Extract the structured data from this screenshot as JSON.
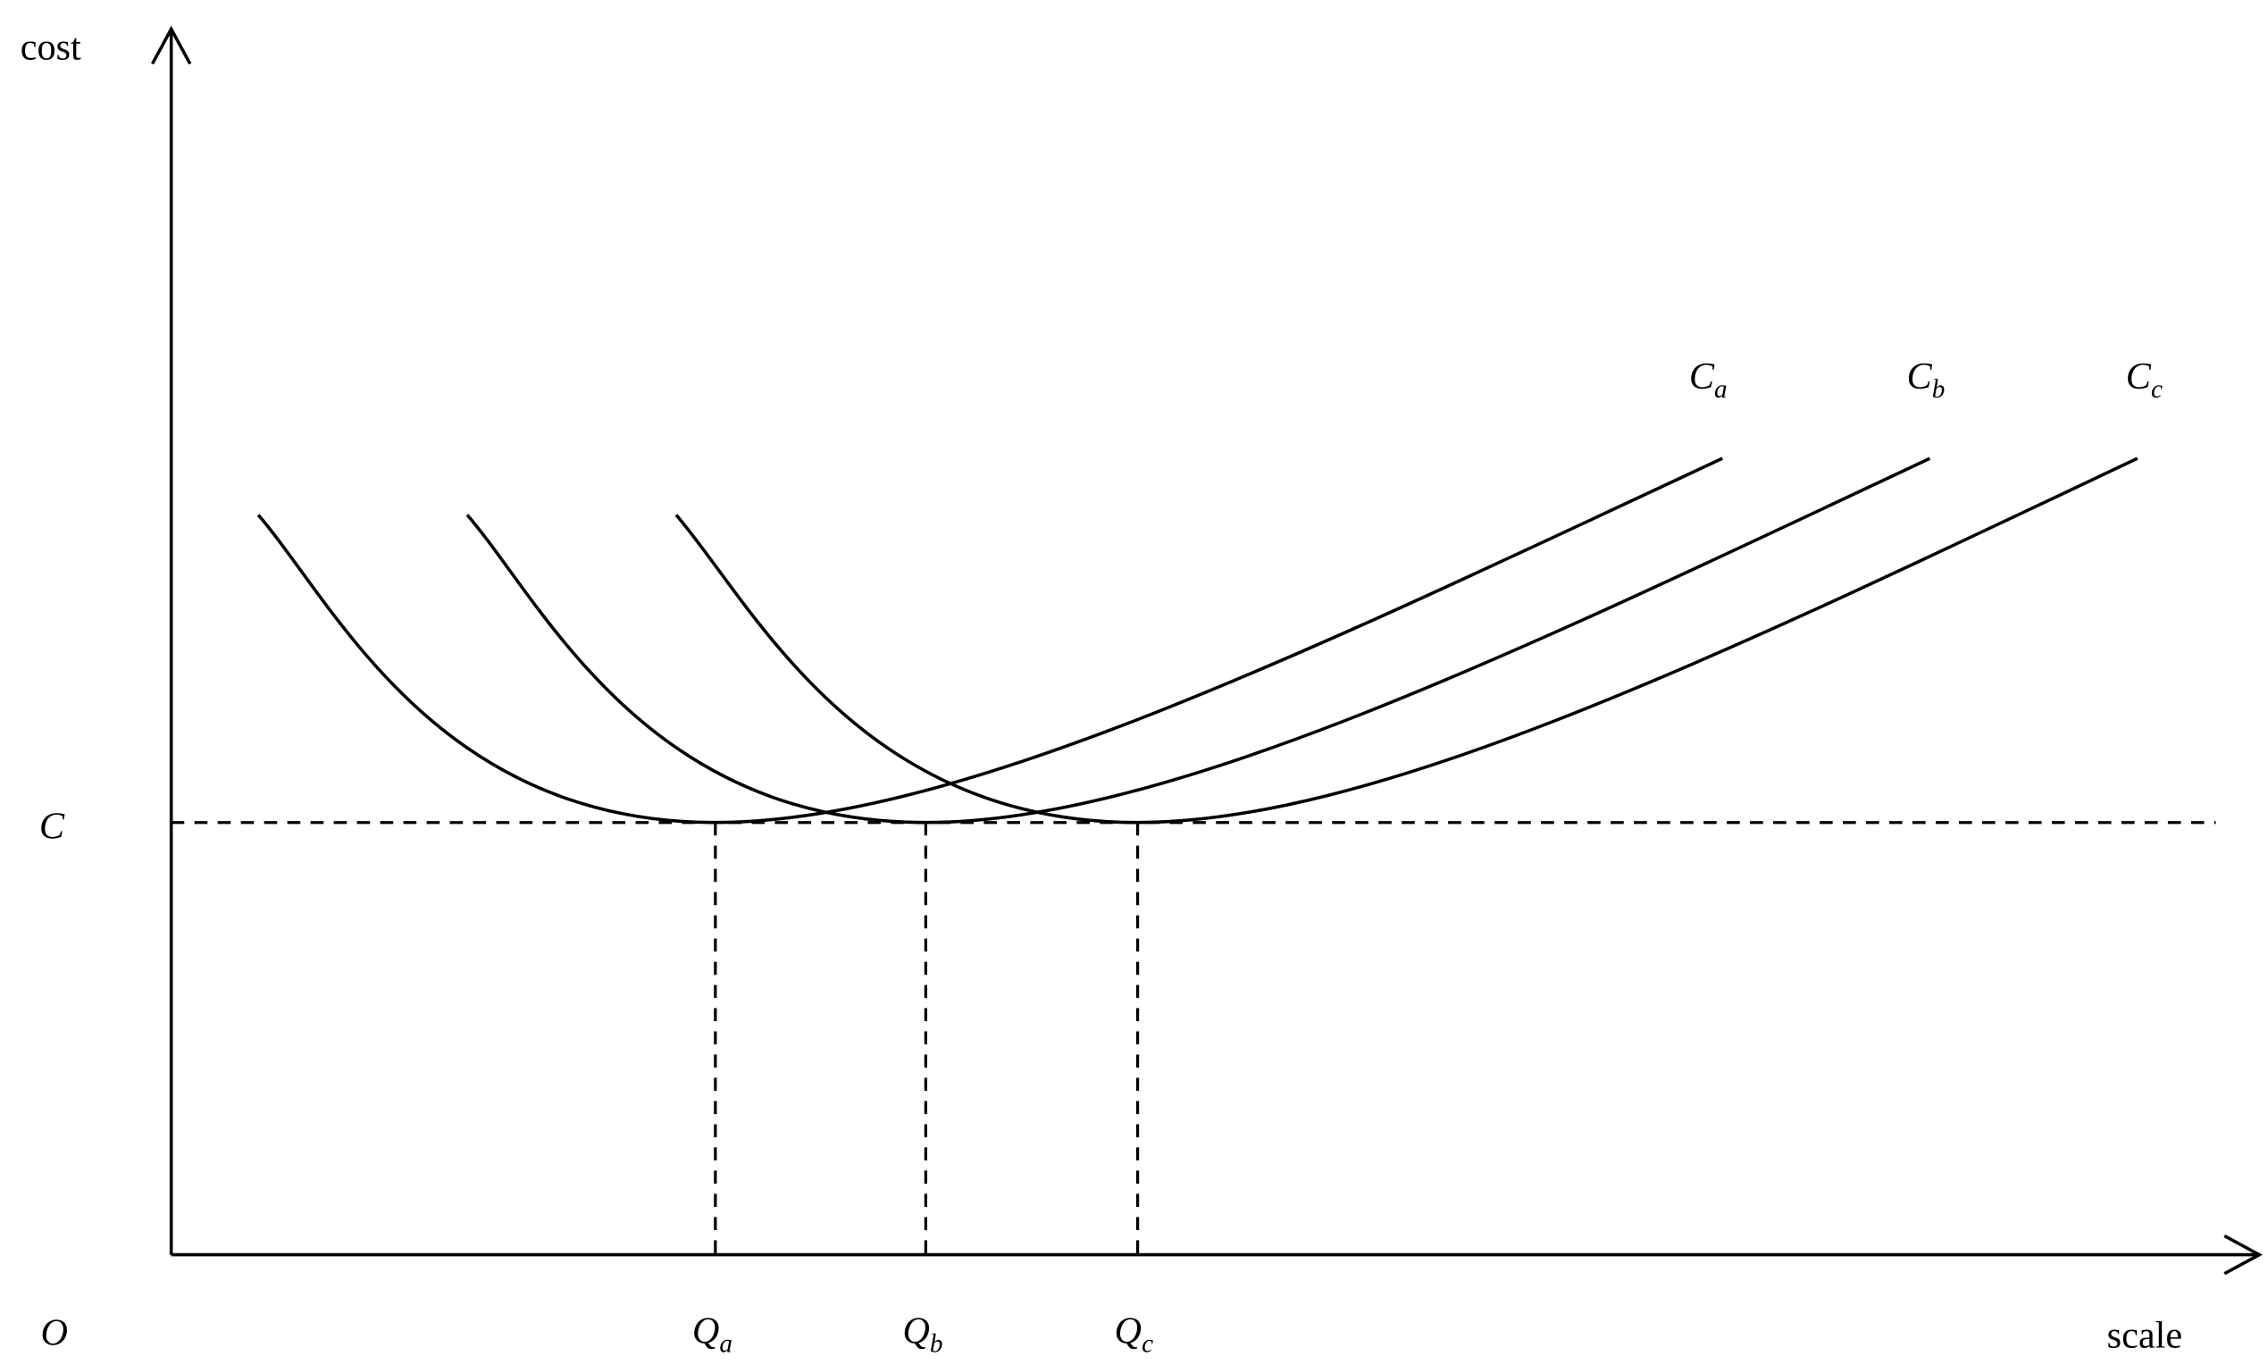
{
  "axes": {
    "y_label": "cost",
    "x_label": "scale",
    "origin": "O"
  },
  "level": {
    "label": "C"
  },
  "curves": [
    {
      "label": "C",
      "subscript": "a"
    },
    {
      "label": "C",
      "subscript": "b"
    },
    {
      "label": "C",
      "subscript": "c"
    }
  ],
  "quantities": [
    {
      "label": "Q",
      "subscript": "a"
    },
    {
      "label": "Q",
      "subscript": "b"
    },
    {
      "label": "Q",
      "subscript": "c"
    }
  ]
}
